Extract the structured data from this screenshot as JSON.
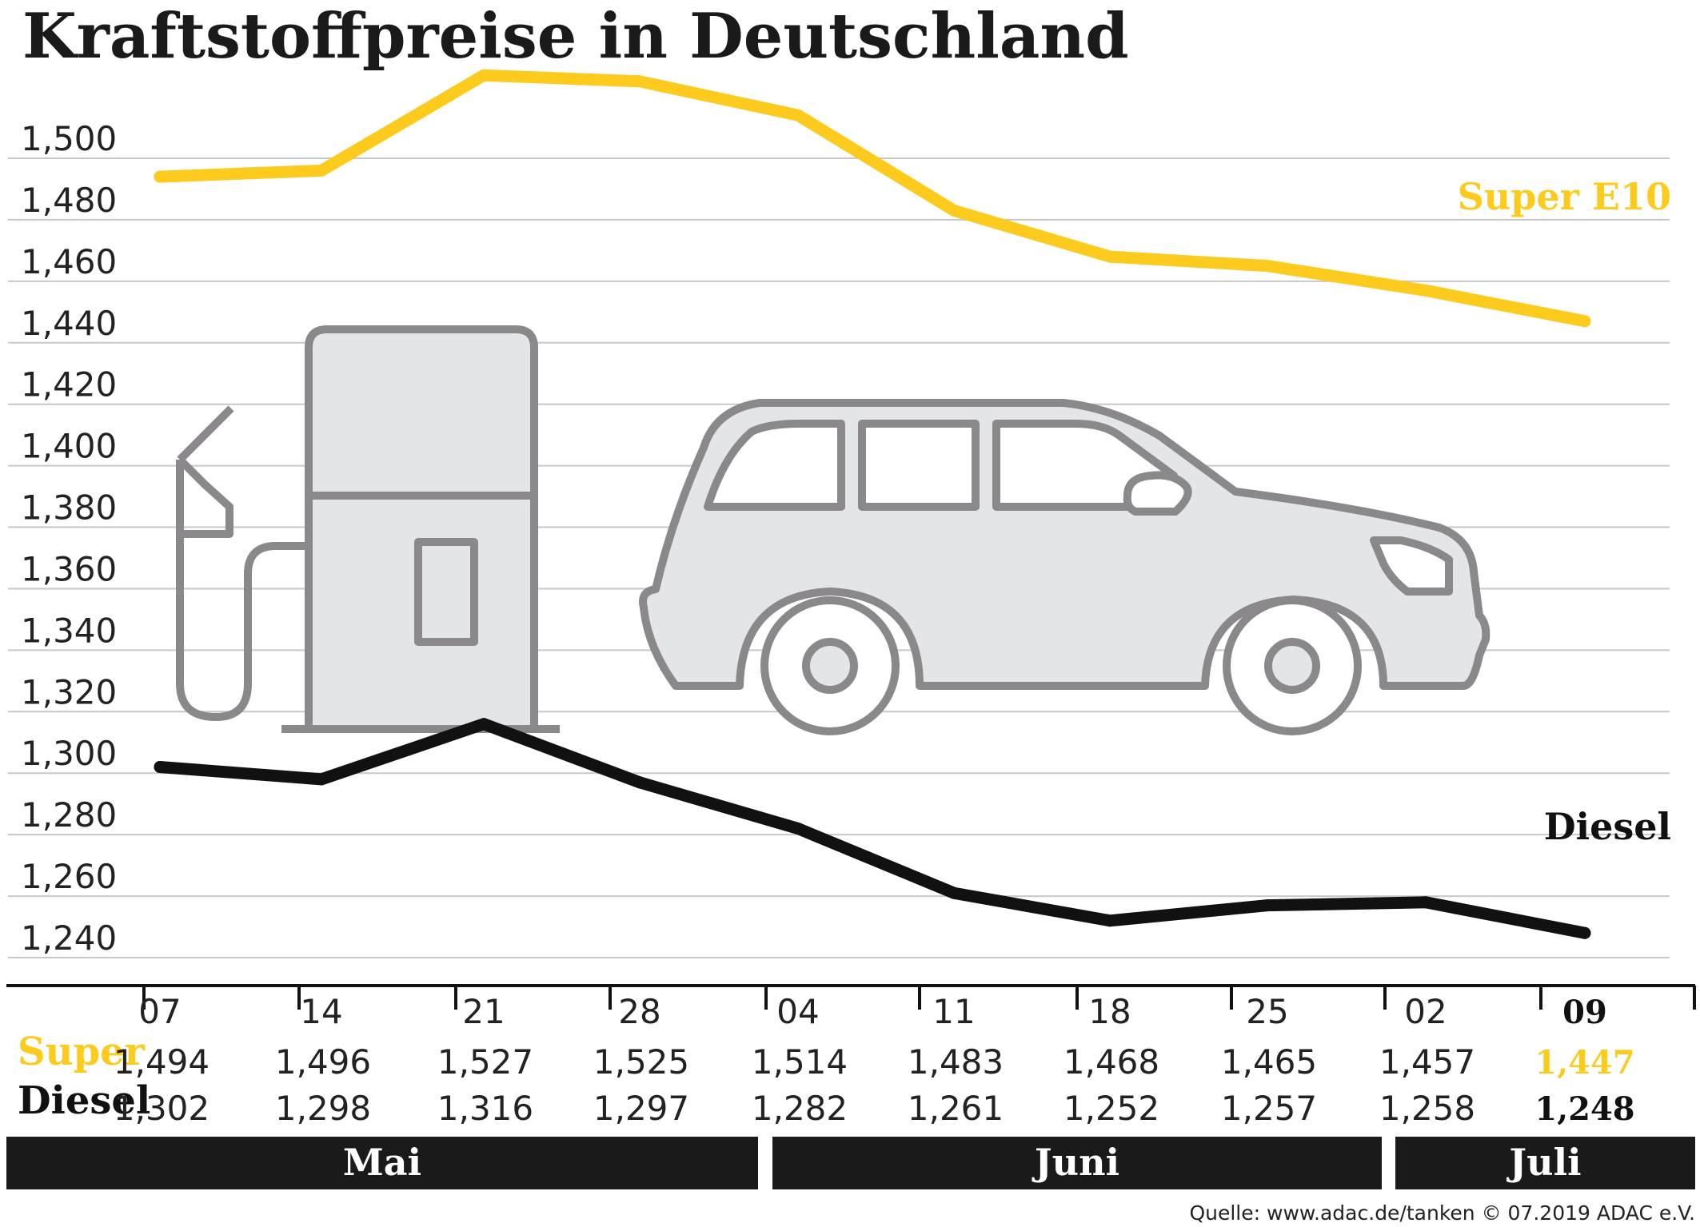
{
  "chart_data": {
    "type": "line",
    "title": "Kraftstoffpreise in Deutschland",
    "ylim": [
      1.232,
      1.536
    ],
    "yticks": [
      "1,500",
      "1,480",
      "1,460",
      "1,440",
      "1,420",
      "1,400",
      "1,380",
      "1,360",
      "1,340",
      "1,320",
      "1,300",
      "1,280",
      "1,260",
      "1,240"
    ],
    "ytick_values": [
      1.5,
      1.48,
      1.46,
      1.44,
      1.42,
      1.4,
      1.38,
      1.36,
      1.34,
      1.32,
      1.3,
      1.28,
      1.26,
      1.24
    ],
    "categories": [
      "07",
      "14",
      "21",
      "28",
      "04",
      "11",
      "18",
      "25",
      "02",
      "09"
    ],
    "series": [
      {
        "name": "Super E10",
        "row_label": "Super",
        "color": "#fdcb1e",
        "values": [
          1.494,
          1.496,
          1.527,
          1.525,
          1.514,
          1.483,
          1.468,
          1.465,
          1.457,
          1.447
        ],
        "value_labels": [
          "1,494",
          "1,496",
          "1,527",
          "1,525",
          "1,514",
          "1,483",
          "1,468",
          "1,465",
          "1,457",
          "1,447"
        ]
      },
      {
        "name": "Diesel",
        "row_label": "Diesel",
        "color": "#111111",
        "values": [
          1.302,
          1.298,
          1.316,
          1.297,
          1.282,
          1.261,
          1.252,
          1.257,
          1.258,
          1.248
        ],
        "value_labels": [
          "1,302",
          "1,298",
          "1,316",
          "1,297",
          "1,282",
          "1,261",
          "1,252",
          "1,257",
          "1,258",
          "1,248"
        ]
      }
    ],
    "months": [
      {
        "label": "Mai",
        "from": 0,
        "to": 3
      },
      {
        "label": "Juni",
        "from": 4,
        "to": 7
      },
      {
        "label": "Juli",
        "from": 8,
        "to": 9
      }
    ],
    "source": "Quelle: www.adac.de/tanken   © 07.2019  ADAC e.V."
  },
  "colors": {
    "gridline": "#c8c8c8",
    "axis": "#111111",
    "illustration_stroke": "#8a888b",
    "illustration_fill": "#e4e5e8",
    "month_bar": "#1a1a1a"
  },
  "icons": [
    "fuel-pump-icon",
    "car-icon"
  ]
}
